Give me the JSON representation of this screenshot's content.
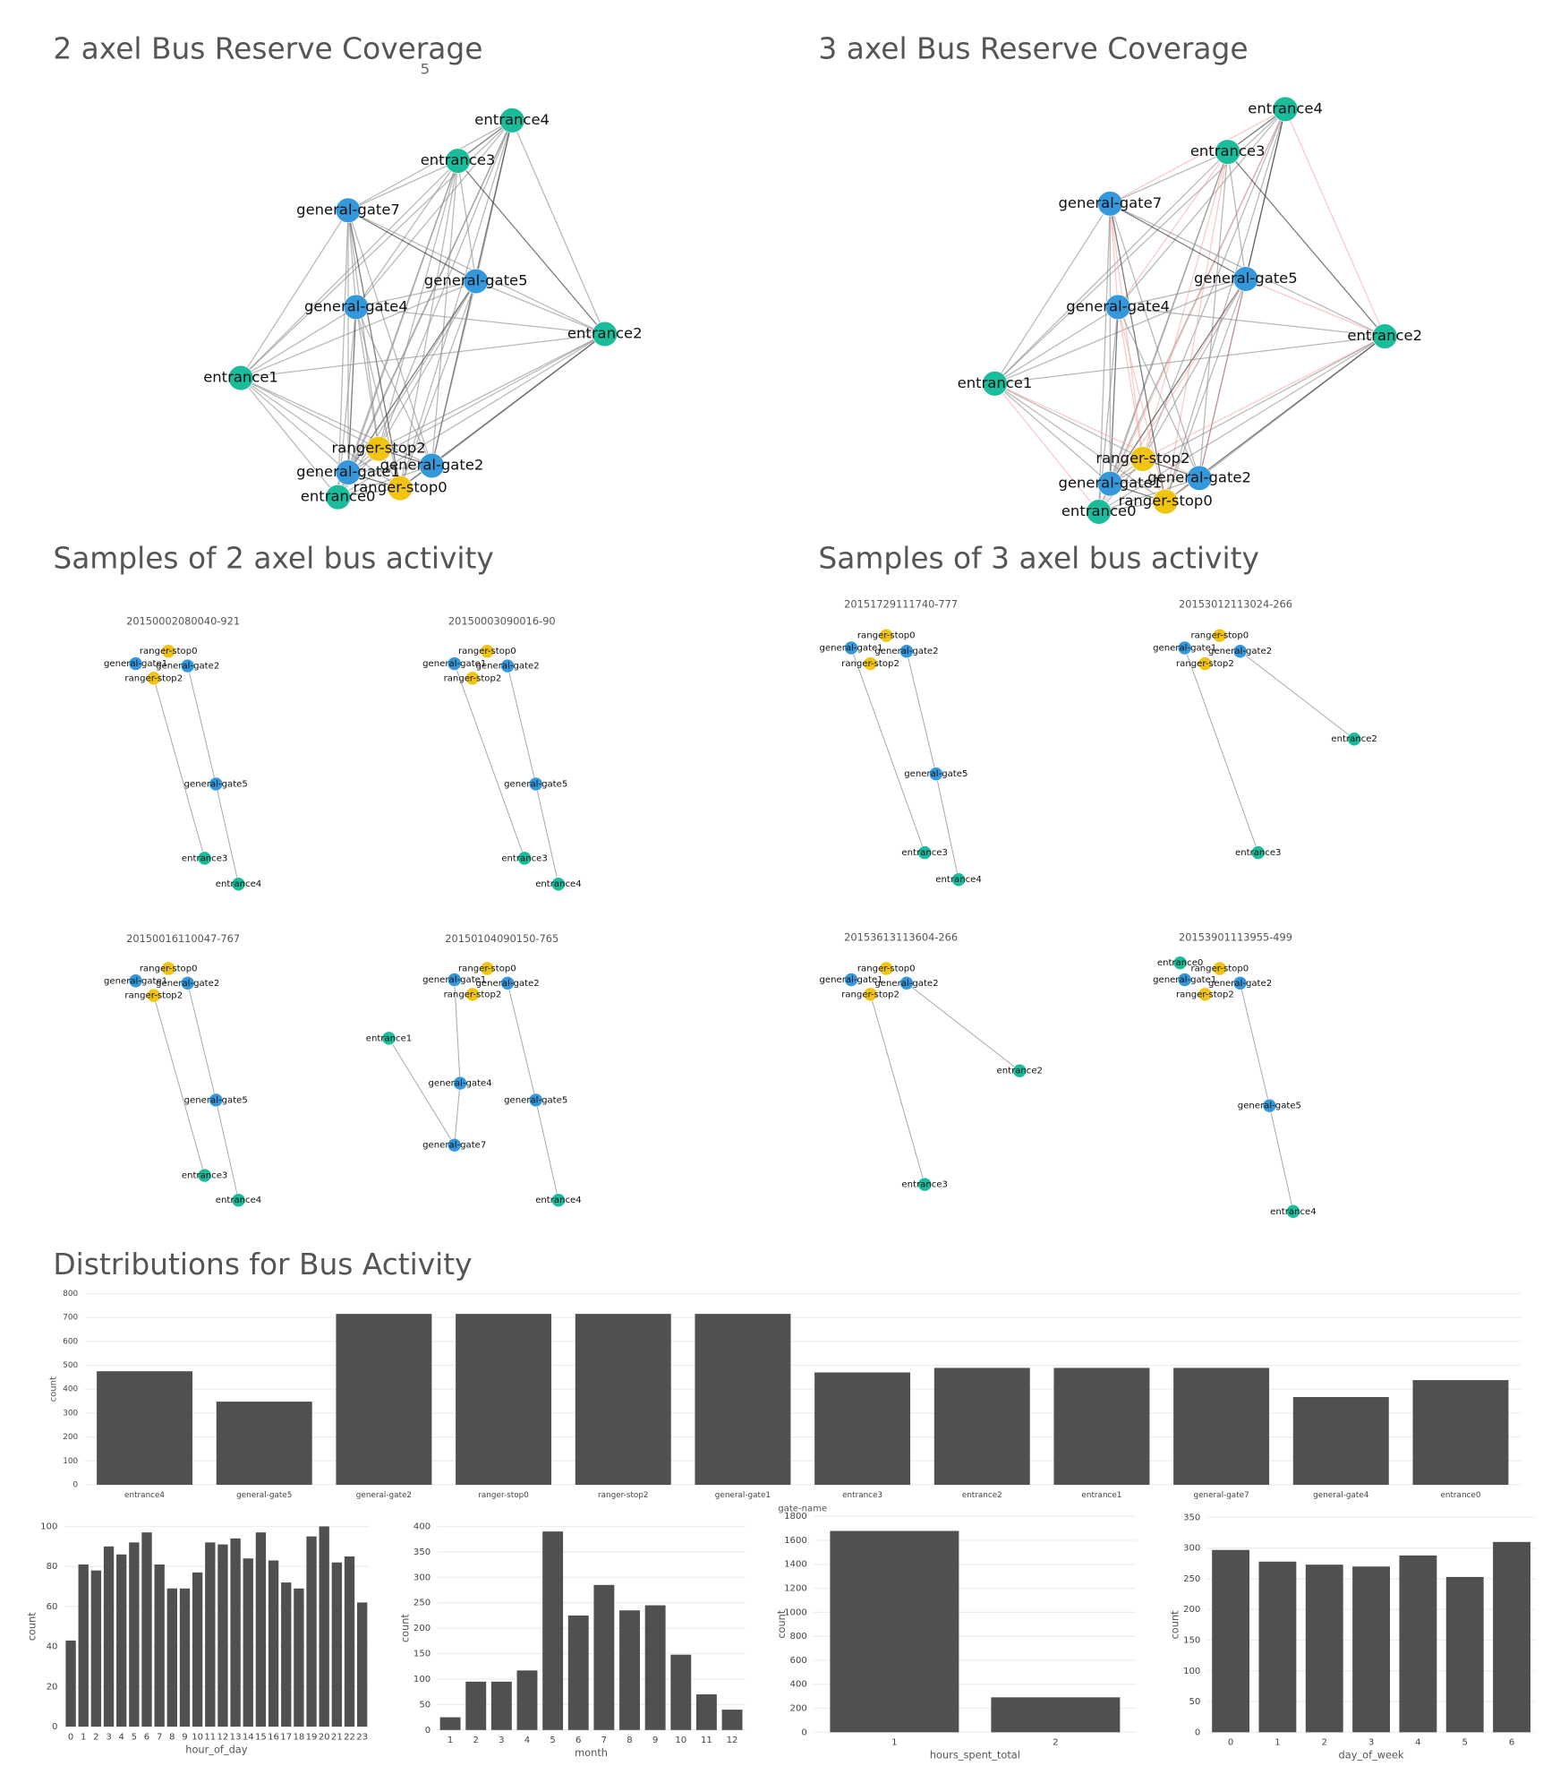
{
  "headings": [
    "Samples of 2 axel bus activity",
    "Samples of 3 axel bus activity",
    "Distributions for Bus Activity"
  ],
  "chart_data": [
    {
      "type": "network",
      "title": "2 axel Bus Reserve Coverage",
      "annotation": "5",
      "nodes": [
        "entrance4",
        "entrance3",
        "general-gate7",
        "general-gate5",
        "general-gate4",
        "entrance2",
        "entrance1",
        "ranger-stop2",
        "general-gate2",
        "general-gate1",
        "ranger-stop0",
        "entrance0"
      ]
    },
    {
      "type": "network",
      "title": "3 axel Bus Reserve Coverage",
      "nodes": [
        "entrance4",
        "entrance3",
        "general-gate7",
        "general-gate5",
        "general-gate4",
        "entrance2",
        "entrance1",
        "ranger-stop2",
        "general-gate2",
        "general-gate1",
        "ranger-stop0",
        "entrance0"
      ]
    },
    {
      "type": "network",
      "title": "20150002080040-921",
      "nodes": [
        "ranger-stop0",
        "general-gate1",
        "general-gate2",
        "ranger-stop2",
        "general-gate5",
        "entrance3",
        "entrance4"
      ]
    },
    {
      "type": "network",
      "title": "20150003090016-90",
      "nodes": [
        "ranger-stop0",
        "general-gate1",
        "general-gate2",
        "ranger-stop2",
        "general-gate5",
        "entrance3",
        "entrance4"
      ]
    },
    {
      "type": "network",
      "title": "20150016110047-767",
      "nodes": [
        "ranger-stop0",
        "general-gate1",
        "general-gate2",
        "ranger-stop2",
        "general-gate5",
        "entrance3",
        "entrance4"
      ]
    },
    {
      "type": "network",
      "title": "20150104090150-765",
      "nodes": [
        "ranger-stop0",
        "general-gate1",
        "general-gate2",
        "ranger-stop2",
        "entrance1",
        "general-gate4",
        "general-gate5",
        "general-gate7",
        "entrance4"
      ]
    },
    {
      "type": "network",
      "title": "20151729111740-777",
      "nodes": [
        "ranger-stop0",
        "general-gate1",
        "general-gate2",
        "ranger-stop2",
        "general-gate5",
        "entrance3",
        "entrance4"
      ]
    },
    {
      "type": "network",
      "title": "20153012113024-266",
      "nodes": [
        "ranger-stop0",
        "general-gate1",
        "general-gate2",
        "ranger-stop2",
        "entrance2",
        "entrance3"
      ]
    },
    {
      "type": "network",
      "title": "20153613113604-266",
      "nodes": [
        "ranger-stop0",
        "general-gate1",
        "general-gate2",
        "ranger-stop2",
        "entrance2",
        "entrance3"
      ]
    },
    {
      "type": "network",
      "title": "20153901113955-499",
      "nodes": [
        "entrance0",
        "ranger-stop0",
        "general-gate1",
        "general-gate2",
        "ranger-stop2",
        "general-gate5",
        "entrance4"
      ]
    },
    {
      "type": "bar",
      "xlabel": "gate-name",
      "ylabel": "count",
      "color": "#505050",
      "categories": [
        "entrance4",
        "general-gate5",
        "general-gate2",
        "ranger-stop0",
        "ranger-stop2",
        "general-gate1",
        "entrance3",
        "entrance2",
        "entrance1",
        "general-gate7",
        "general-gate4",
        "entrance0"
      ],
      "values": [
        475,
        348,
        715,
        715,
        715,
        715,
        470,
        489,
        489,
        489,
        367,
        438
      ],
      "ylim": [
        0,
        800
      ],
      "yticks": [
        0,
        100,
        200,
        300,
        400,
        500,
        600,
        700,
        800
      ],
      "grid": true
    },
    {
      "type": "bar",
      "xlabel": "hour_of_day",
      "ylabel": "count",
      "color": "#505050",
      "categories": [
        "0",
        "1",
        "2",
        "3",
        "4",
        "5",
        "6",
        "7",
        "8",
        "9",
        "10",
        "11",
        "12",
        "13",
        "14",
        "15",
        "16",
        "17",
        "18",
        "19",
        "20",
        "21",
        "22",
        "23"
      ],
      "values": [
        43,
        81,
        78,
        90,
        86,
        92,
        97,
        81,
        69,
        69,
        77,
        92,
        91,
        94,
        84,
        97,
        83,
        72,
        69,
        95,
        100,
        82,
        85,
        62
      ],
      "ylim": [
        0,
        100
      ],
      "yticks": [
        0,
        20,
        40,
        60,
        80,
        100
      ],
      "grid": true
    },
    {
      "type": "bar",
      "xlabel": "month",
      "ylabel": "count",
      "color": "#505050",
      "categories": [
        "1",
        "2",
        "3",
        "4",
        "5",
        "6",
        "7",
        "8",
        "9",
        "10",
        "11",
        "12"
      ],
      "values": [
        25,
        95,
        95,
        117,
        390,
        225,
        285,
        235,
        245,
        148,
        70,
        40
      ],
      "ylim": [
        0,
        400
      ],
      "yticks": [
        0,
        50,
        100,
        150,
        200,
        250,
        300,
        350,
        400
      ],
      "grid": true
    },
    {
      "type": "bar",
      "xlabel": "hours_spent_total",
      "ylabel": "count",
      "color": "#505050",
      "categories": [
        "1",
        "2"
      ],
      "values": [
        1678,
        291
      ],
      "ylim": [
        0,
        1800
      ],
      "yticks": [
        0,
        200,
        400,
        600,
        800,
        1000,
        1200,
        1400,
        1600,
        1800
      ],
      "grid": true
    },
    {
      "type": "bar",
      "xlabel": "day_of_week",
      "ylabel": "count",
      "color": "#505050",
      "categories": [
        "0",
        "1",
        "2",
        "3",
        "4",
        "5",
        "6"
      ],
      "values": [
        297,
        278,
        273,
        270,
        288,
        253,
        310
      ],
      "ylim": [
        0,
        350
      ],
      "yticks": [
        0,
        50,
        100,
        150,
        200,
        250,
        300,
        350
      ],
      "grid": true
    }
  ]
}
